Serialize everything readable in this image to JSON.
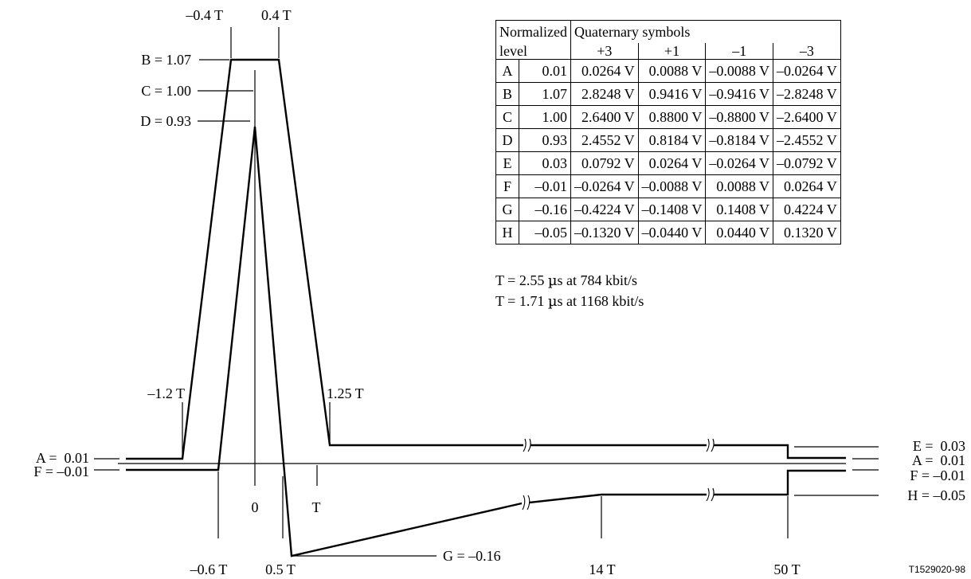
{
  "time_labels": {
    "m04": "–0.4 T",
    "p04": "0.4 T",
    "m12": "–1.2 T",
    "p125": "1.25 T",
    "zero": "0",
    "T": "T",
    "m06": "–0.6 T",
    "p05": "0.5 T",
    "t14": "14 T",
    "t50": "50 T"
  },
  "level_labels": {
    "B": "B = 1.07",
    "C": "C = 1.00",
    "D": "D = 0.93",
    "A_left": "A =  0.01",
    "F_left": "F = –0.01",
    "G": "G = –0.16",
    "E_right": "E =  0.03",
    "A_right": "A =  0.01",
    "F_right": "F = –0.01",
    "H_right": "H = –0.05"
  },
  "figure_id": "T1529020-98",
  "table": {
    "header_left": "Normalized",
    "header_left2": "level",
    "header_right": "Quaternary symbols",
    "symbols": [
      "+3",
      "+1",
      "–1",
      "–3"
    ],
    "rows": [
      {
        "name": "A",
        "level": "0.01",
        "v": [
          "0.0264 V",
          "0.0088 V",
          "–0.0088 V",
          "–0.0264 V"
        ]
      },
      {
        "name": "B",
        "level": "1.07",
        "v": [
          "2.8248 V",
          "0.9416 V",
          "–0.9416 V",
          "–2.8248 V"
        ]
      },
      {
        "name": "C",
        "level": "1.00",
        "v": [
          "2.6400 V",
          "0.8800 V",
          "–0.8800 V",
          "–2.6400 V"
        ]
      },
      {
        "name": "D",
        "level": "0.93",
        "v": [
          "2.4552 V",
          "0.8184 V",
          "–0.8184 V",
          "–2.4552 V"
        ]
      },
      {
        "name": "E",
        "level": "0.03",
        "v": [
          "0.0792 V",
          "0.0264 V",
          "–0.0264 V",
          "–0.0792 V"
        ]
      },
      {
        "name": "F",
        "level": "–0.01",
        "v": [
          "–0.0264 V",
          "–0.0088 V",
          "0.0088 V",
          "0.0264 V"
        ]
      },
      {
        "name": "G",
        "level": "–0.16",
        "v": [
          "–0.4224 V",
          "–0.1408 V",
          "0.1408 V",
          "0.4224 V"
        ]
      },
      {
        "name": "H",
        "level": "–0.05",
        "v": [
          "–0.1320 V",
          "–0.0440 V",
          "0.0440 V",
          "0.1320 V"
        ]
      }
    ]
  },
  "footnotes": {
    "line1_pre": "T = 2.55 ",
    "line1_post": "s at 784 kbit/s",
    "line2_pre": "T = 1.71 ",
    "line2_post": "s at 1168 kbit/s",
    "mu": "µ"
  }
}
